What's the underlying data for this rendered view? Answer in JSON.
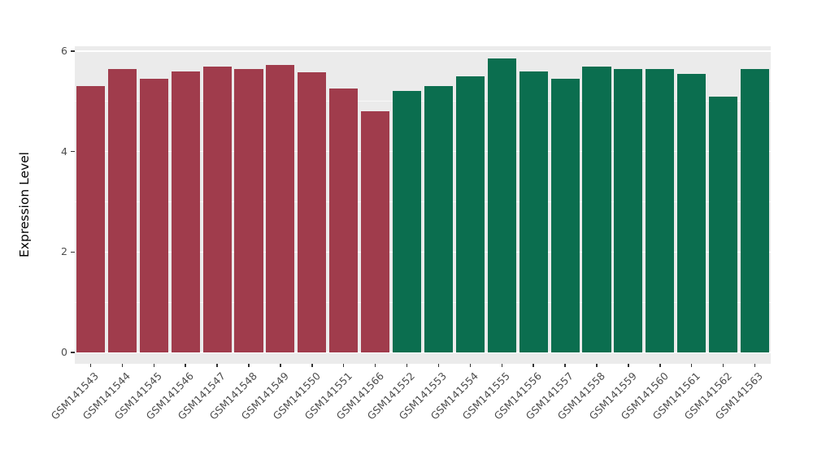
{
  "chart_data": {
    "type": "bar",
    "title": "",
    "xlabel": "",
    "ylabel": "Expression Level",
    "ylim": [
      0,
      6.15
    ],
    "yticks": [
      0,
      2,
      4,
      6
    ],
    "yticks_minor": [
      1,
      3,
      5
    ],
    "grid": true,
    "legend_position": "none",
    "panel_background": "#EBEBEB",
    "grid_color": "#FFFFFF",
    "tick_label_color": "#4D4D4D",
    "categories": [
      "GSM141543",
      "GSM141544",
      "GSM141545",
      "GSM141546",
      "GSM141547",
      "GSM141548",
      "GSM141549",
      "GSM141550",
      "GSM141551",
      "GSM141566",
      "GSM141552",
      "GSM141553",
      "GSM141554",
      "GSM141555",
      "GSM141556",
      "GSM141557",
      "GSM141558",
      "GSM141559",
      "GSM141560",
      "GSM141561",
      "GSM141562",
      "GSM141563"
    ],
    "values": [
      5.3,
      5.65,
      5.45,
      5.6,
      5.7,
      5.65,
      5.73,
      5.58,
      5.25,
      4.8,
      5.2,
      5.3,
      5.5,
      5.85,
      5.6,
      5.45,
      5.7,
      5.65,
      5.65,
      5.55,
      5.1,
      5.65
    ],
    "bar_group": [
      "groupA",
      "groupA",
      "groupA",
      "groupA",
      "groupA",
      "groupA",
      "groupA",
      "groupA",
      "groupA",
      "groupA",
      "groupB",
      "groupB",
      "groupB",
      "groupB",
      "groupB",
      "groupB",
      "groupB",
      "groupB",
      "groupB",
      "groupB",
      "groupB",
      "groupB"
    ],
    "group_colors": {
      "groupA": "#A03C4C",
      "groupB": "#0B6E4F"
    }
  }
}
